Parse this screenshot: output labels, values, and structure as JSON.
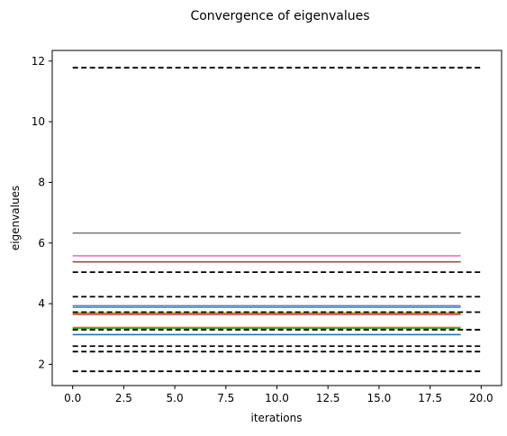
{
  "chart_data": {
    "type": "line",
    "title": "Convergence of eigenvalues",
    "xlabel": "iterations",
    "ylabel": "eigenvalues",
    "xlim": [
      -1.0,
      21.0
    ],
    "ylim": [
      1.3,
      12.35
    ],
    "xticks": [
      0.0,
      2.5,
      5.0,
      7.5,
      10.0,
      12.5,
      15.0,
      17.5,
      20.0
    ],
    "xtick_labels": [
      "0.0",
      "2.5",
      "5.0",
      "7.5",
      "10.0",
      "12.5",
      "15.0",
      "17.5",
      "20.0"
    ],
    "yticks": [
      2,
      4,
      6,
      8,
      10,
      12
    ],
    "ytick_labels": [
      "2",
      "4",
      "6",
      "8",
      "10",
      "12"
    ],
    "grid": false,
    "legend": false,
    "series": [
      {
        "color": "#1f77b4",
        "style": "solid",
        "x": [
          0,
          19
        ],
        "y": [
          2.98,
          2.98
        ]
      },
      {
        "color": "#ff7f0e",
        "style": "solid",
        "x": [
          0,
          19
        ],
        "y": [
          3.22,
          3.22
        ]
      },
      {
        "color": "#2ca02c",
        "style": "solid",
        "x": [
          0,
          19
        ],
        "y": [
          3.19,
          3.19
        ]
      },
      {
        "color": "#d62728",
        "style": "solid",
        "x": [
          0,
          19
        ],
        "y": [
          3.65,
          3.65
        ]
      },
      {
        "color": "#9467bd",
        "style": "solid",
        "x": [
          0,
          19
        ],
        "y": [
          3.93,
          3.93
        ]
      },
      {
        "color": "#8c564b",
        "style": "solid",
        "x": [
          0,
          19
        ],
        "y": [
          5.38,
          5.38
        ]
      },
      {
        "color": "#e377c2",
        "style": "solid",
        "x": [
          0,
          19
        ],
        "y": [
          5.58,
          5.58
        ]
      },
      {
        "color": "#7f7f7f",
        "style": "solid",
        "x": [
          0,
          19
        ],
        "y": [
          6.33,
          6.33
        ]
      },
      {
        "color": "#bcbd22",
        "style": "solid",
        "x": [
          0,
          19
        ],
        "y": [
          3.7,
          3.7
        ]
      },
      {
        "color": "#17becf",
        "style": "solid",
        "x": [
          0,
          19
        ],
        "y": [
          3.88,
          3.88
        ]
      }
    ],
    "reference_lines": [
      {
        "color": "#000000",
        "style": "dashed",
        "x": [
          0,
          20
        ],
        "y": 1.77
      },
      {
        "color": "#000000",
        "style": "dashed",
        "x": [
          0,
          20
        ],
        "y": 2.42
      },
      {
        "color": "#000000",
        "style": "dashed",
        "x": [
          0,
          20
        ],
        "y": 2.6
      },
      {
        "color": "#000000",
        "style": "dashed",
        "x": [
          0,
          20
        ],
        "y": 3.14
      },
      {
        "color": "#000000",
        "style": "dashed",
        "x": [
          0,
          20
        ],
        "y": 3.72
      },
      {
        "color": "#000000",
        "style": "dashed",
        "x": [
          0,
          20
        ],
        "y": 4.23
      },
      {
        "color": "#000000",
        "style": "dashed",
        "x": [
          0,
          20
        ],
        "y": 5.04
      },
      {
        "color": "#000000",
        "style": "dashed",
        "x": [
          0,
          20
        ],
        "y": 11.78
      }
    ]
  }
}
